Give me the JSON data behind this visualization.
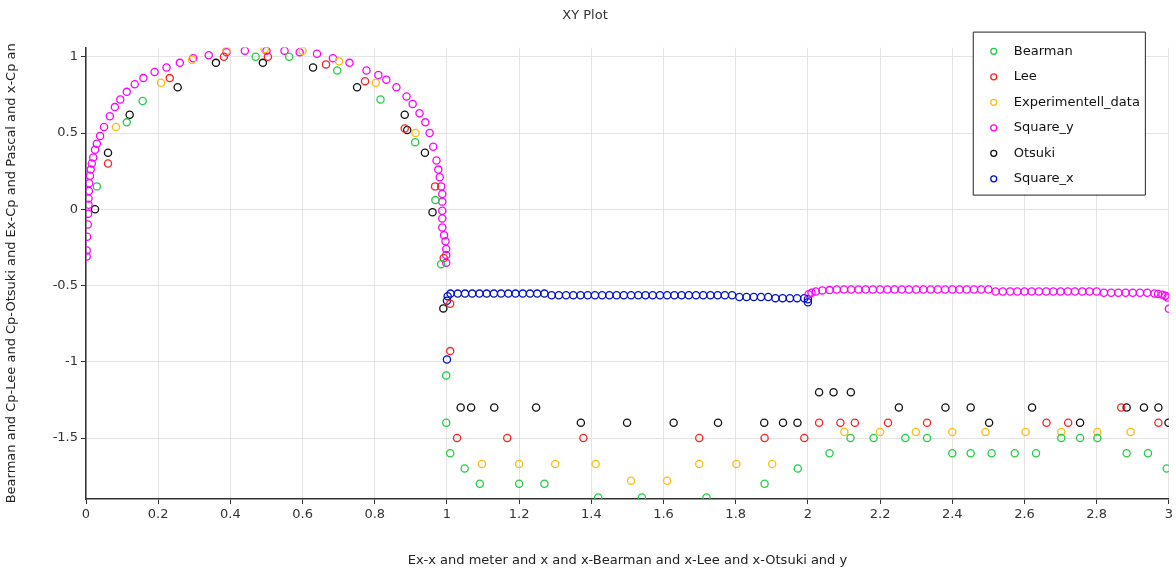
{
  "chart_data": {
    "type": "scatter",
    "title": "XY Plot",
    "xlabel": "Ex-x and meter and x and x-Bearman and x-Lee and x-Otsuki and y",
    "ylabel": "Bearman and Cp-Lee and Cp-Otsuki and Ex-Cp and Pascal and x-Cp an",
    "xlim": [
      0,
      3
    ],
    "ylim": [
      -1.9,
      1.06
    ],
    "xticks": [
      0,
      0.2,
      0.4,
      0.6,
      0.8,
      1,
      1.2,
      1.4,
      1.6,
      1.8,
      2,
      2.2,
      2.4,
      2.6,
      2.8,
      3
    ],
    "yticks": [
      -1.5,
      -1,
      -0.5,
      0,
      0.5,
      1
    ],
    "grid": true,
    "legend": "top right",
    "marker": "circle",
    "series": [
      {
        "name": "Bearman",
        "color": "#22cc44",
        "x": [
          0.03,
          0.113,
          0.157,
          0.47,
          0.563,
          0.696,
          0.816,
          0.912,
          0.968,
          0.984,
          0.998,
          0.998,
          1.009,
          1.049,
          1.091,
          1.2,
          1.27,
          1.419,
          1.54,
          1.719,
          1.88,
          1.972,
          2.06,
          2.118,
          2.182,
          2.27,
          2.33,
          2.4,
          2.451,
          2.509,
          2.573,
          2.632,
          2.702,
          2.754,
          2.802,
          2.883,
          2.942,
          2.994
        ],
        "values": [
          0.15,
          0.57,
          0.71,
          1.0,
          1.0,
          0.91,
          0.72,
          0.44,
          0.06,
          -0.36,
          -1.09,
          -1.4,
          -1.6,
          -1.7,
          -1.8,
          -1.8,
          -1.8,
          -1.89,
          -1.89,
          -1.89,
          -1.8,
          -1.7,
          -1.6,
          -1.5,
          -1.5,
          -1.5,
          -1.5,
          -1.6,
          -1.6,
          -1.6,
          -1.6,
          -1.6,
          -1.5,
          -1.5,
          -1.5,
          -1.6,
          -1.6,
          -1.7
        ]
      },
      {
        "name": "Lee",
        "color": "#ff2020",
        "x": [
          0.061,
          0.232,
          0.382,
          0.504,
          0.665,
          0.773,
          0.883,
          0.967,
          0.991,
          1.009,
          1.009,
          1.028,
          1.167,
          1.378,
          1.699,
          1.88,
          1.99,
          2.031,
          2.09,
          2.13,
          2.222,
          2.33,
          2.661,
          2.721,
          2.868,
          2.971
        ],
        "values": [
          0.3,
          0.86,
          1.0,
          1.0,
          0.95,
          0.84,
          0.53,
          0.15,
          -0.32,
          -0.62,
          -0.93,
          -1.5,
          -1.5,
          -1.5,
          -1.5,
          -1.5,
          -1.5,
          -1.4,
          -1.4,
          -1.4,
          -1.4,
          -1.4,
          -1.4,
          -1.4,
          -1.3,
          -1.4
        ]
      },
      {
        "name": "Experimentell_data",
        "color": "#ffbb10",
        "x": [
          0.083,
          0.208,
          0.294,
          0.389,
          0.495,
          0.6,
          0.701,
          0.803,
          0.913,
          1.097,
          1.2,
          1.3,
          1.412,
          1.51,
          1.61,
          1.699,
          1.802,
          1.901,
          2.101,
          2.2,
          2.299,
          2.4,
          2.492,
          2.603,
          2.702,
          2.802,
          2.894
        ],
        "values": [
          0.54,
          0.83,
          0.98,
          1.04,
          1.05,
          1.04,
          0.97,
          0.83,
          0.5,
          -1.67,
          -1.67,
          -1.67,
          -1.67,
          -1.78,
          -1.78,
          -1.67,
          -1.67,
          -1.67,
          -1.46,
          -1.46,
          -1.46,
          -1.46,
          -1.46,
          -1.46,
          -1.46,
          -1.46,
          -1.46
        ]
      },
      {
        "name": "Square_y",
        "color": "#ff00ff",
        "x": [
          0.002,
          0.002,
          0.003,
          0.005,
          0.006,
          0.007,
          0.007,
          0.008,
          0.009,
          0.011,
          0.013,
          0.016,
          0.02,
          0.025,
          0.03,
          0.039,
          0.05,
          0.066,
          0.08,
          0.095,
          0.113,
          0.135,
          0.159,
          0.19,
          0.223,
          0.26,
          0.297,
          0.34,
          0.389,
          0.44,
          0.5,
          0.55,
          0.592,
          0.64,
          0.684,
          0.73,
          0.777,
          0.81,
          0.832,
          0.86,
          0.888,
          0.905,
          0.924,
          0.94,
          0.952,
          0.962,
          0.971,
          0.976,
          0.98,
          0.984,
          0.987,
          0.987,
          0.987,
          0.987,
          0.987,
          0.992,
          0.996,
          0.998,
          0.998,
          0.998,
          2.002,
          2.01,
          2.022,
          2.04,
          2.06,
          2.08,
          2.1,
          2.12,
          2.14,
          2.16,
          2.18,
          2.2,
          2.22,
          2.24,
          2.26,
          2.28,
          2.3,
          2.32,
          2.34,
          2.36,
          2.38,
          2.4,
          2.42,
          2.44,
          2.46,
          2.48,
          2.5,
          2.52,
          2.54,
          2.56,
          2.58,
          2.6,
          2.62,
          2.64,
          2.66,
          2.68,
          2.7,
          2.72,
          2.74,
          2.76,
          2.78,
          2.8,
          2.82,
          2.84,
          2.86,
          2.88,
          2.9,
          2.92,
          2.94,
          2.96,
          2.97,
          2.982,
          2.99,
          2.996,
          3.0
        ],
        "values": [
          -0.31,
          -0.27,
          -0.18,
          -0.1,
          -0.03,
          0.03,
          0.07,
          0.12,
          0.17,
          0.22,
          0.26,
          0.3,
          0.34,
          0.39,
          0.43,
          0.48,
          0.54,
          0.61,
          0.67,
          0.72,
          0.77,
          0.82,
          0.86,
          0.9,
          0.93,
          0.96,
          0.99,
          1.01,
          1.03,
          1.04,
          1.04,
          1.04,
          1.03,
          1.02,
          0.99,
          0.96,
          0.91,
          0.88,
          0.85,
          0.8,
          0.74,
          0.69,
          0.63,
          0.57,
          0.5,
          0.41,
          0.32,
          0.26,
          0.21,
          0.15,
          0.1,
          0.05,
          -0.01,
          -0.06,
          -0.12,
          -0.17,
          -0.21,
          -0.26,
          -0.3,
          -0.35,
          -0.557,
          -0.548,
          -0.539,
          -0.532,
          -0.53,
          -0.526,
          -0.526,
          -0.526,
          -0.526,
          -0.526,
          -0.526,
          -0.526,
          -0.526,
          -0.526,
          -0.526,
          -0.526,
          -0.526,
          -0.526,
          -0.526,
          -0.526,
          -0.526,
          -0.526,
          -0.526,
          -0.526,
          -0.526,
          -0.526,
          -0.526,
          -0.539,
          -0.539,
          -0.539,
          -0.539,
          -0.539,
          -0.539,
          -0.539,
          -0.539,
          -0.539,
          -0.539,
          -0.539,
          -0.539,
          -0.539,
          -0.539,
          -0.539,
          -0.548,
          -0.548,
          -0.548,
          -0.548,
          -0.548,
          -0.548,
          -0.548,
          -0.552,
          -0.555,
          -0.561,
          -0.568,
          -0.579,
          -0.653
        ]
      },
      {
        "name": "Otsuki",
        "color": "#111111",
        "x": [
          0.025,
          0.061,
          0.121,
          0.254,
          0.36,
          0.49,
          0.629,
          0.751,
          0.883,
          0.89,
          0.939,
          0.96,
          0.99,
          1.038,
          1.067,
          1.131,
          1.247,
          1.371,
          1.499,
          1.628,
          1.751,
          1.879,
          1.931,
          1.971,
          2.031,
          2.071,
          2.119,
          2.252,
          2.381,
          2.451,
          2.502,
          2.621,
          2.754,
          2.883,
          2.931,
          2.971,
          2.999
        ],
        "values": [
          0,
          0.37,
          0.62,
          0.8,
          0.96,
          0.96,
          0.93,
          0.8,
          0.62,
          0.52,
          0.37,
          -0.02,
          -0.65,
          -1.3,
          -1.3,
          -1.3,
          -1.3,
          -1.4,
          -1.4,
          -1.4,
          -1.4,
          -1.4,
          -1.4,
          -1.4,
          -1.2,
          -1.2,
          -1.2,
          -1.3,
          -1.3,
          -1.3,
          -1.4,
          -1.3,
          -1.4,
          -1.3,
          -1.3,
          -1.3,
          -1.4
        ]
      },
      {
        "name": "Square_x",
        "color": "#0011cc",
        "x": [
          1.0,
          1.0,
          1.002,
          1.01,
          1.03,
          1.05,
          1.07,
          1.09,
          1.11,
          1.13,
          1.15,
          1.17,
          1.19,
          1.21,
          1.23,
          1.25,
          1.27,
          1.29,
          1.31,
          1.33,
          1.35,
          1.37,
          1.39,
          1.41,
          1.43,
          1.45,
          1.47,
          1.49,
          1.51,
          1.53,
          1.55,
          1.57,
          1.59,
          1.61,
          1.63,
          1.65,
          1.67,
          1.69,
          1.71,
          1.73,
          1.75,
          1.77,
          1.79,
          1.81,
          1.83,
          1.85,
          1.87,
          1.89,
          1.91,
          1.93,
          1.95,
          1.97,
          1.99,
          2.0,
          2.0
        ],
        "values": [
          -0.985,
          -0.6,
          -0.57,
          -0.553,
          -0.553,
          -0.553,
          -0.553,
          -0.553,
          -0.553,
          -0.553,
          -0.553,
          -0.553,
          -0.553,
          -0.553,
          -0.553,
          -0.553,
          -0.553,
          -0.564,
          -0.564,
          -0.564,
          -0.564,
          -0.564,
          -0.564,
          -0.564,
          -0.564,
          -0.564,
          -0.564,
          -0.564,
          -0.564,
          -0.564,
          -0.564,
          -0.564,
          -0.564,
          -0.564,
          -0.564,
          -0.564,
          -0.564,
          -0.564,
          -0.564,
          -0.564,
          -0.564,
          -0.564,
          -0.564,
          -0.575,
          -0.575,
          -0.575,
          -0.575,
          -0.575,
          -0.583,
          -0.583,
          -0.583,
          -0.583,
          -0.583,
          -0.59,
          -0.61
        ]
      }
    ]
  }
}
